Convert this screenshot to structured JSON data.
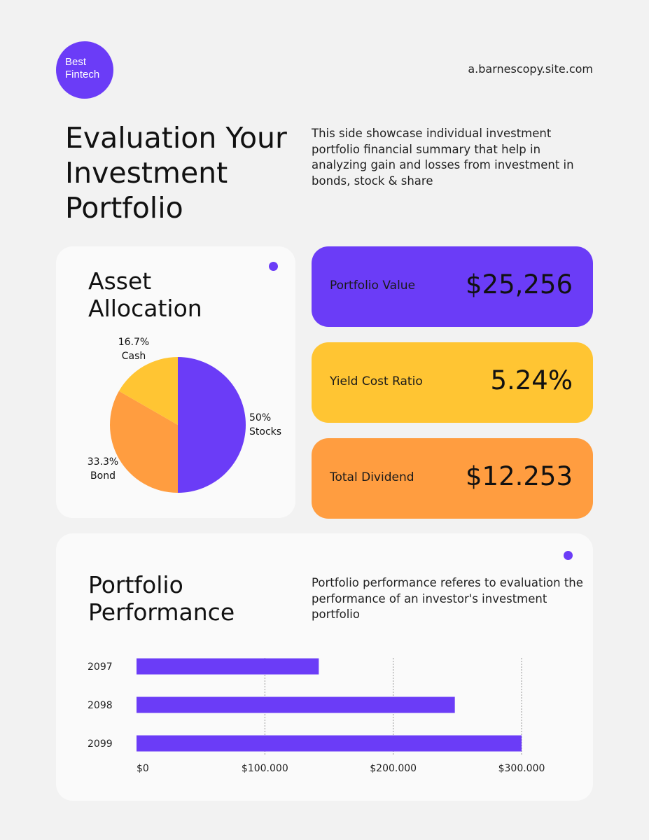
{
  "header": {
    "logo_line1": "Best",
    "logo_line2": "Fintech",
    "site": "a.barnescopy.site.com"
  },
  "hero": {
    "title_line1": "Evaluation Your",
    "title_line2": "Investment",
    "title_line3": "Portfolio",
    "description": "This side showcase individual investment portfolio financial summary that help in analyzing gain and losses from investment in bonds, stock & share"
  },
  "allocation": {
    "title_line1": "Asset",
    "title_line2": "Allocation"
  },
  "metrics": [
    {
      "label": "Portfolio Value",
      "value": "$25,256",
      "color": "#6b3cf7"
    },
    {
      "label": "Yield Cost Ratio",
      "value": "5.24%",
      "color": "#ffc533"
    },
    {
      "label": "Total Dividend",
      "value": "$12.253",
      "color": "#ff9d40"
    }
  ],
  "performance": {
    "title_line1": "Portfolio",
    "title_line2": "Performance",
    "description": "Portfolio performance referes to evaluation the performance of an investor's investment portfolio"
  },
  "chart_data": [
    {
      "type": "pie",
      "slices": [
        {
          "pct_label": "50%",
          "label": "Stocks",
          "value": 50,
          "color": "#6b3cf7"
        },
        {
          "pct_label": "33.3%",
          "label": "Bond",
          "value": 33.3,
          "color": "#ff9d40"
        },
        {
          "pct_label": "16.7%",
          "label": "Cash",
          "value": 16.7,
          "color": "#ffc533"
        }
      ]
    },
    {
      "type": "bar",
      "orientation": "horizontal",
      "categories": [
        "2097",
        "2098",
        "2099"
      ],
      "values": [
        142000,
        248000,
        300000
      ],
      "xlim": [
        0,
        300000
      ],
      "xticks": [
        0,
        100000,
        200000,
        300000
      ],
      "xtick_labels": [
        "$0",
        "$100.000",
        "$200.000",
        "$300.000"
      ],
      "color": "#6b3cf7",
      "grid": "vertical dashed"
    }
  ]
}
